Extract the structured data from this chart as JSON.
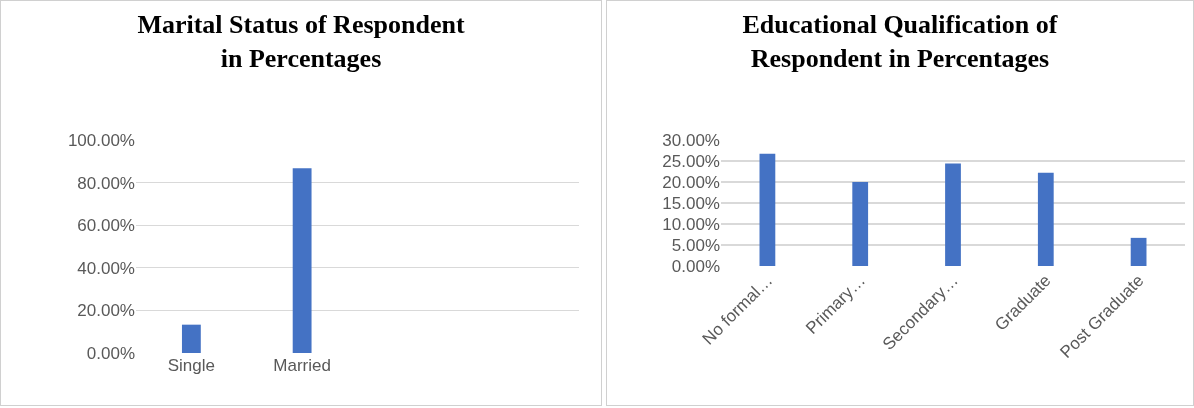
{
  "chart_data": [
    {
      "type": "bar",
      "title": "Marital Status of Respondent in Percentages",
      "categories": [
        "Single",
        "Married",
        null,
        null
      ],
      "values": [
        13.3,
        86.7,
        null,
        null
      ],
      "color": "#4472c4",
      "ylim": [
        0,
        100
      ],
      "yticks": [
        {
          "value": 0,
          "label": "0.00%"
        },
        {
          "value": 20,
          "label": "20.00%"
        },
        {
          "value": 40,
          "label": "40.00%"
        },
        {
          "value": 60,
          "label": "60.00%"
        },
        {
          "value": 80,
          "label": "80.00%"
        },
        {
          "value": 100,
          "label": "100.00%"
        }
      ],
      "grid": "y"
    },
    {
      "type": "bar",
      "title": "Educational Qualification of Respondent in Percentages",
      "categories": [
        "No formal…",
        "Primary…",
        "Secondary…",
        "Graduate",
        "Post Graduate"
      ],
      "values": [
        26.7,
        20,
        24.4,
        22.2,
        6.7
      ],
      "color": "#4472c4",
      "ylim": [
        0,
        30
      ],
      "yticks": [
        {
          "value": 0,
          "label": "0.00%"
        },
        {
          "value": 5,
          "label": "5.00%"
        },
        {
          "value": 10,
          "label": "10.00%"
        },
        {
          "value": 15,
          "label": "15.00%"
        },
        {
          "value": 20,
          "label": "20.00%"
        },
        {
          "value": 25,
          "label": "25.00%"
        },
        {
          "value": 30,
          "label": "30.00%"
        }
      ],
      "grid": "y"
    }
  ]
}
